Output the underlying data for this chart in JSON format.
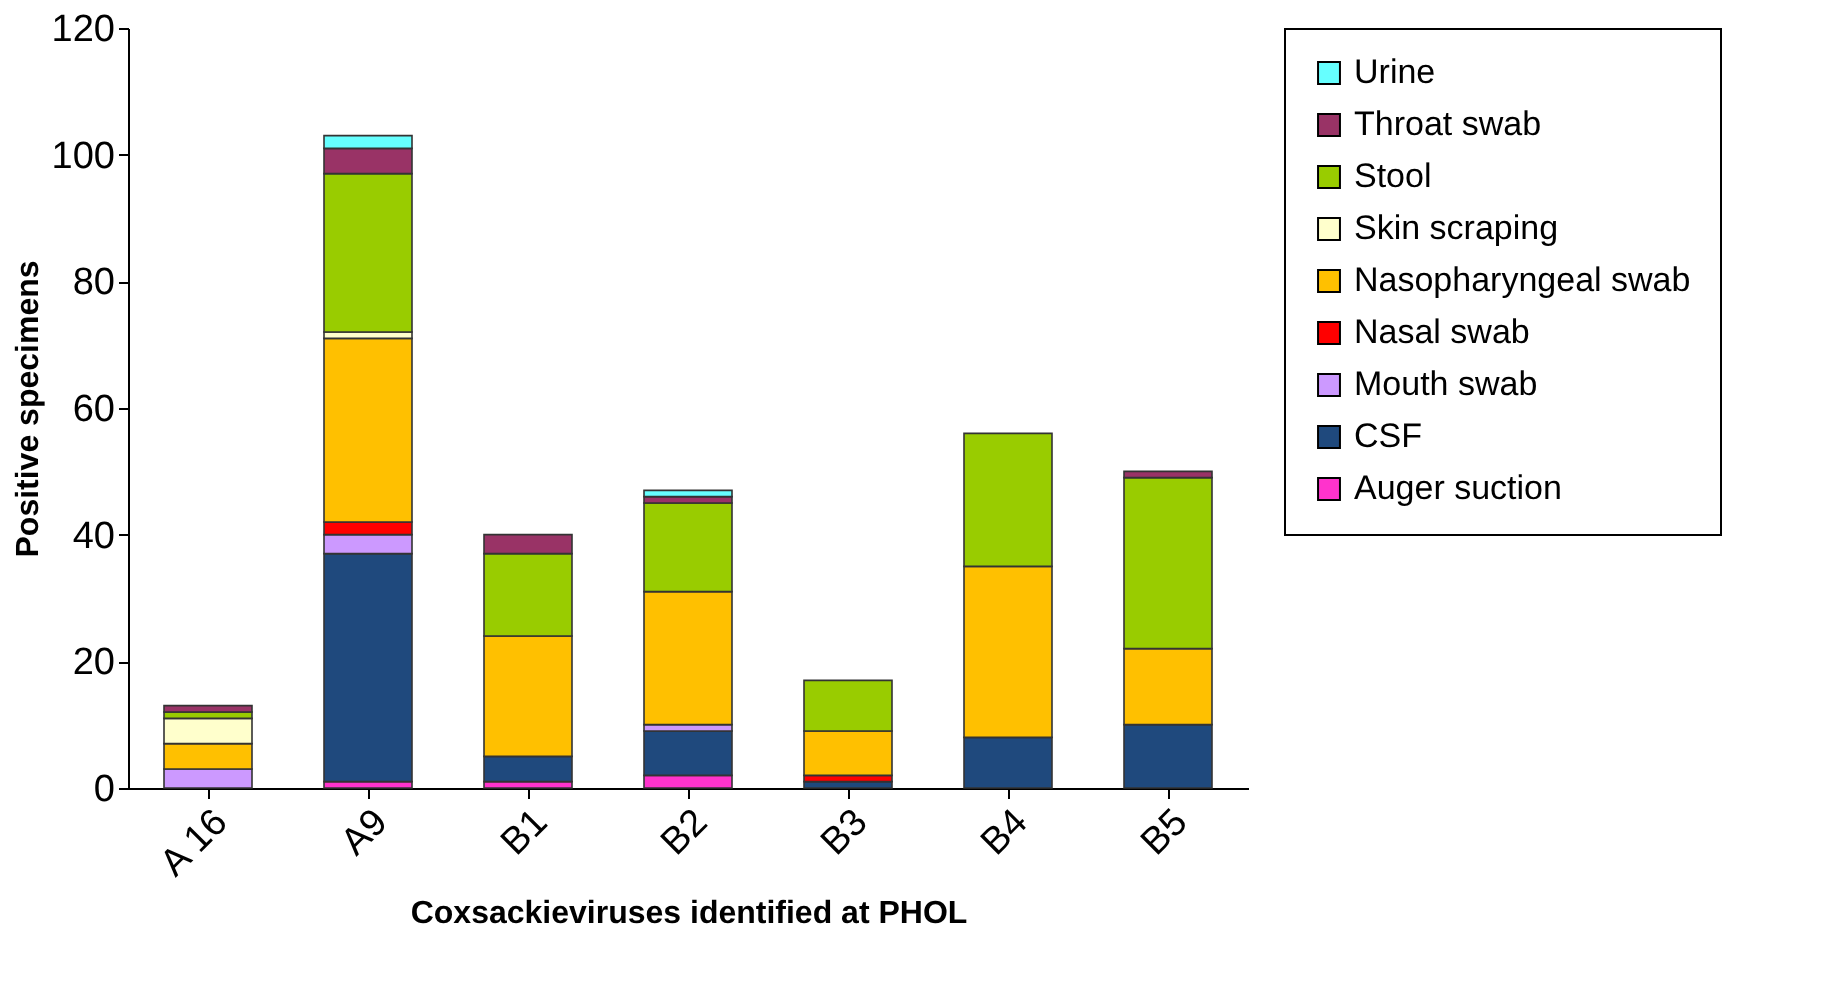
{
  "chart_data": {
    "type": "bar",
    "stacked": true,
    "xlabel": "Coxsackieviruses identified at PHOL",
    "ylabel": "Positive specimens",
    "categories": [
      "A 16",
      "A9",
      "B1",
      "B2",
      "B3",
      "B4",
      "B5"
    ],
    "ylim": [
      0,
      120
    ],
    "yticks": [
      0,
      20,
      40,
      60,
      80,
      100,
      120
    ],
    "grid": false,
    "legend": "right",
    "series": [
      {
        "name": "Auger suction",
        "color": "#ff33cc",
        "values": [
          0,
          1,
          1,
          2,
          0,
          0,
          0
        ]
      },
      {
        "name": "CSF",
        "color": "#1f497d",
        "values": [
          0,
          36,
          4,
          7,
          1,
          8,
          10
        ]
      },
      {
        "name": "Mouth swab",
        "color": "#cc99ff",
        "values": [
          3,
          3,
          0,
          1,
          0,
          0,
          0
        ]
      },
      {
        "name": "Nasal swab",
        "color": "#ff0000",
        "values": [
          0,
          2,
          0,
          0,
          1,
          0,
          0
        ]
      },
      {
        "name": "Nasopharyngeal swab",
        "color": "#ffc000",
        "values": [
          4,
          29,
          19,
          21,
          7,
          27,
          12
        ]
      },
      {
        "name": "Skin scraping",
        "color": "#ffffcc",
        "values": [
          4,
          1,
          0,
          0,
          0,
          0,
          0
        ]
      },
      {
        "name": "Stool",
        "color": "#99cc00",
        "values": [
          1,
          25,
          13,
          14,
          8,
          21,
          27
        ]
      },
      {
        "name": "Throat swab",
        "color": "#993366",
        "values": [
          1,
          4,
          3,
          1,
          0,
          0,
          1
        ]
      },
      {
        "name": "Urine",
        "color": "#66ffff",
        "values": [
          0,
          2,
          0,
          1,
          0,
          0,
          0
        ]
      }
    ]
  }
}
